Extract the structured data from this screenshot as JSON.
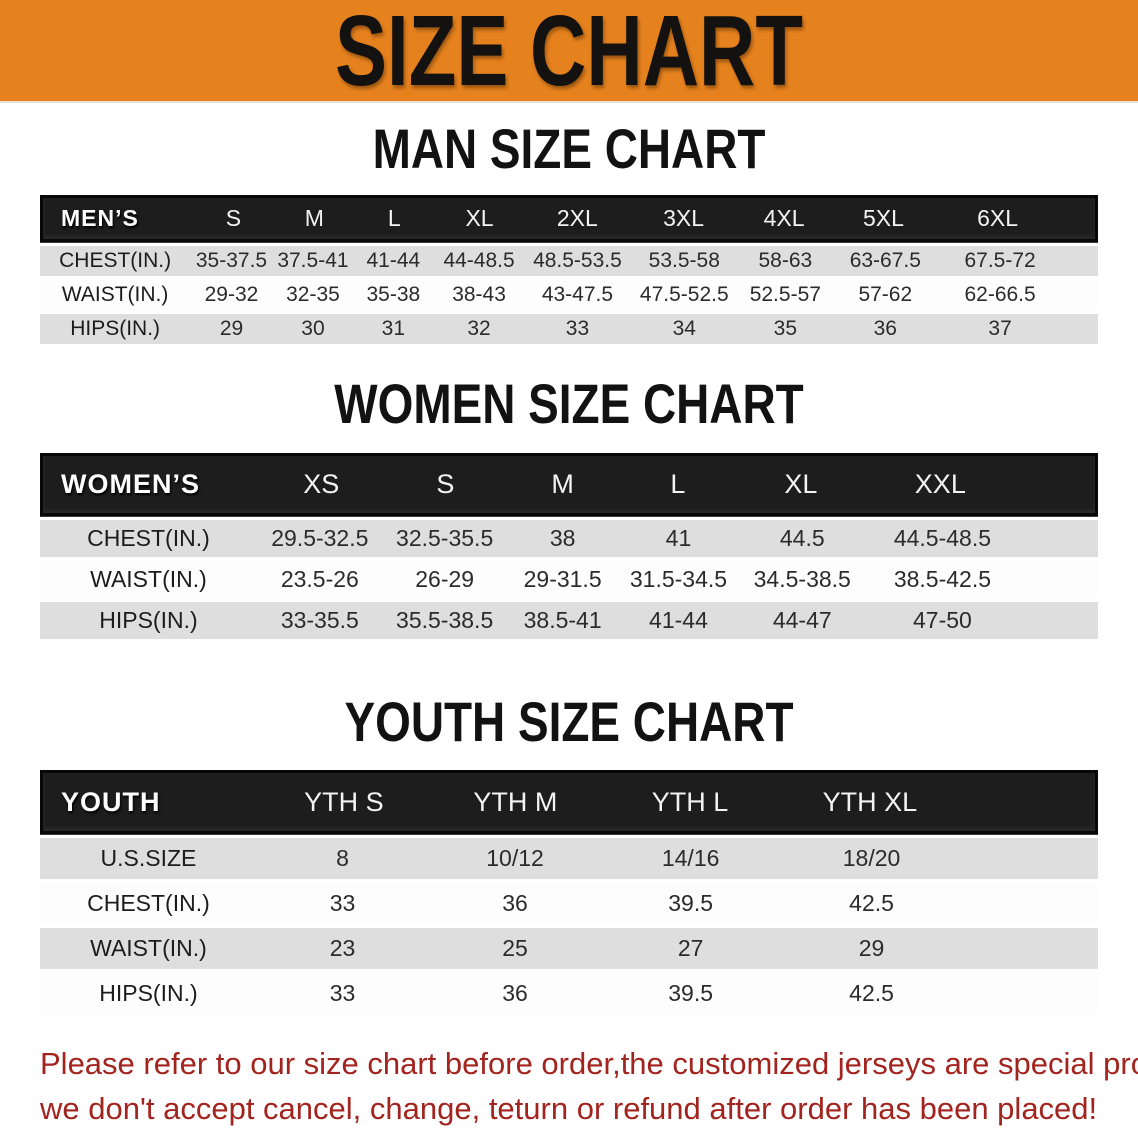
{
  "banner": {
    "title": "SIZE CHART"
  },
  "colors": {
    "banner_bg": "#e6821e",
    "header_bg": "#1d1d1d",
    "row_gray": "#dedede",
    "note_red": "#a3241f"
  },
  "sections": [
    {
      "id": "men",
      "heading": "MAN SIZE CHART",
      "corner": "MEN’S",
      "sizes": [
        "S",
        "M",
        "L",
        "XL",
        "2XL",
        "3XL",
        "4XL",
        "5XL",
        "6XL"
      ],
      "rows": [
        {
          "label": "CHEST(IN.)",
          "values": [
            "35-37.5",
            "37.5-41",
            "41-44",
            "44-48.5",
            "48.5-53.5",
            "53.5-58",
            "58-63",
            "63-67.5",
            "67.5-72"
          ]
        },
        {
          "label": "WAIST(IN.)",
          "values": [
            "29-32",
            "32-35",
            "35-38",
            "38-43",
            "43-47.5",
            "47.5-52.5",
            "52.5-57",
            "57-62",
            "62-66.5"
          ]
        },
        {
          "label": "HIPS(IN.)",
          "values": [
            "29",
            "30",
            "31",
            "32",
            "33",
            "34",
            "35",
            "36",
            "37"
          ]
        }
      ]
    },
    {
      "id": "women",
      "heading": "WOMEN SIZE CHART",
      "corner": "WOMEN’S",
      "sizes": [
        "XS",
        "S",
        "M",
        "L",
        "XL",
        "XXL"
      ],
      "rows": [
        {
          "label": "CHEST(IN.)",
          "values": [
            "29.5-32.5",
            "32.5-35.5",
            "38",
            "41",
            "44.5",
            "44.5-48.5"
          ]
        },
        {
          "label": "WAIST(IN.)",
          "values": [
            "23.5-26",
            "26-29",
            "29-31.5",
            "31.5-34.5",
            "34.5-38.5",
            "38.5-42.5"
          ]
        },
        {
          "label": "HIPS(IN.)",
          "values": [
            "33-35.5",
            "35.5-38.5",
            "38.5-41",
            "41-44",
            "44-47",
            "47-50"
          ]
        }
      ]
    },
    {
      "id": "youth",
      "heading": "YOUTH SIZE CHART",
      "corner": "YOUTH",
      "sizes": [
        "YTH S",
        "YTH M",
        "YTH L",
        "YTH XL"
      ],
      "rows": [
        {
          "label": "U.S.SIZE",
          "values": [
            "8",
            "10/12",
            "14/16",
            "18/20"
          ]
        },
        {
          "label": "CHEST(IN.)",
          "values": [
            "33",
            "36",
            "39.5",
            "42.5"
          ]
        },
        {
          "label": "WAIST(IN.)",
          "values": [
            "23",
            "25",
            "27",
            "29"
          ]
        },
        {
          "label": "HIPS(IN.)",
          "values": [
            "33",
            "36",
            "39.5",
            "42.5"
          ]
        }
      ]
    }
  ],
  "note": {
    "lines": [
      "Please refer to our size chart before order,the customized jerseys are special products,",
      "we don't accept cancel, change, teturn or refund after order has been placed!"
    ]
  }
}
